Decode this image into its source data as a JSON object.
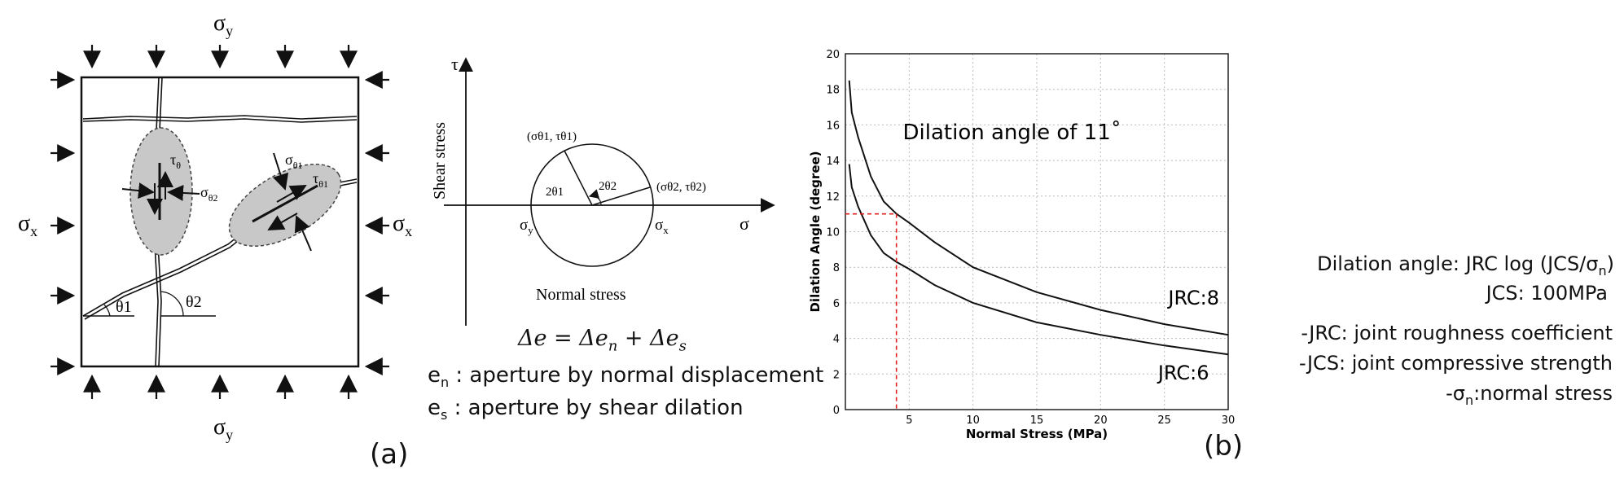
{
  "panel_a": {
    "label": "(a)",
    "block": {
      "sigma_y_top": "σ",
      "sigma_y_top_sub": "y",
      "sigma_y_bottom": "σ",
      "sigma_y_bottom_sub": "y",
      "sigma_x_left": "σ",
      "sigma_x_left_sub": "x",
      "sigma_x_right": "σ",
      "sigma_x_right_sub": "x",
      "tau_theta": "τ",
      "tau_theta_sub": "θ",
      "sigma_theta2": "σ",
      "sigma_theta2_sub": "θ2",
      "sigma_theta1": "σ",
      "sigma_theta1_sub": "θ1",
      "tau_theta1": "τ",
      "tau_theta1_sub": "θ1",
      "theta1": "θ1",
      "theta2": "θ2"
    },
    "mohr": {
      "tau_axis": "τ",
      "sigma_axis": "σ",
      "y_axis_label": "Shear stress",
      "x_axis_label": "Normal stress",
      "point1": "(σθ1, τθ1)",
      "point2": "(σθ2, τθ2)",
      "angle1": "2θ1",
      "angle2": "2θ2",
      "sigma_y": "σ",
      "sigma_y_sub": "y",
      "sigma_x": "σ",
      "sigma_x_sub": "x"
    },
    "equation": "Δe = Δe",
    "equation_sub_n": "n",
    "equation_plus": " + Δe",
    "equation_sub_s": "s",
    "def_en_var": "e",
    "def_en_sub": "n",
    "def_en_text": " : aperture by normal displacement",
    "def_es_var": "e",
    "def_es_sub": "s",
    "def_es_text": " : aperture by shear dilation"
  },
  "panel_b": {
    "label": "(b)",
    "formula_line1": "Dilation angle: JRC log (JCS/σ",
    "formula_line1_sub": "n",
    "formula_line1_end": ")",
    "formula_line2": "JCS: 100MPa",
    "note1": "-JRC: joint roughness coefficient",
    "note2": "-JCS: joint compressive strength",
    "note3_prefix": "-σ",
    "note3_sub": "n",
    "note3_text": ":normal stress"
  },
  "chart_data": {
    "type": "line",
    "xlabel": "Normal Stress (MPa)",
    "ylabel": "Dilation Angle (degree)",
    "xlim": [
      0,
      30
    ],
    "ylim": [
      0,
      20
    ],
    "x_ticks": [
      5,
      10,
      15,
      20,
      25,
      30
    ],
    "y_ticks": [
      0,
      2,
      4,
      6,
      8,
      10,
      12,
      14,
      16,
      18,
      20
    ],
    "grid": true,
    "series": [
      {
        "name": "JRC:8",
        "x": [
          0.3,
          0.5,
          1,
          2,
          3,
          4,
          5,
          7,
          10,
          15,
          20,
          25,
          30
        ],
        "y": [
          18.5,
          16.7,
          15.3,
          13.1,
          11.7,
          11.0,
          10.5,
          9.4,
          8.0,
          6.6,
          5.6,
          4.8,
          4.2
        ]
      },
      {
        "name": "JRC:6",
        "x": [
          0.3,
          0.5,
          1,
          2,
          3,
          4,
          5,
          7,
          10,
          15,
          20,
          25,
          30
        ],
        "y": [
          13.8,
          12.5,
          11.4,
          9.8,
          8.8,
          8.3,
          7.9,
          7.0,
          6.0,
          4.9,
          4.2,
          3.6,
          3.1
        ]
      }
    ],
    "annotation": "Dilation angle of 11˚",
    "guide": {
      "x": 4,
      "y": 11
    },
    "colors": {
      "curve": "#111111",
      "grid": "#bbbbbb",
      "guide": "#e02020"
    }
  }
}
